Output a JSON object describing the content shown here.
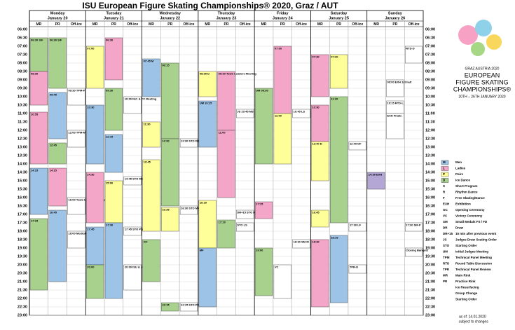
{
  "title": "ISU European Figure Skating Championships® 2020, Graz / AUT",
  "days": [
    {
      "name": "Monday",
      "date": "January 20",
      "columns": [
        "MR",
        "PR",
        "Off-ice"
      ]
    },
    {
      "name": "Tuesday",
      "date": "January 21",
      "columns": [
        "MR",
        "PR",
        "Off-ice"
      ]
    },
    {
      "name": "Wednesday",
      "date": "January 22",
      "columns": [
        "MR",
        "PR",
        "Off-ice"
      ]
    },
    {
      "name": "Thursday",
      "date": "January 23",
      "columns": [
        "MR",
        "PR",
        "Off-ice"
      ]
    },
    {
      "name": "Friday",
      "date": "January 24",
      "columns": [
        "MR",
        "PR",
        "Off-ice"
      ]
    },
    {
      "name": "Saturday",
      "date": "January 25",
      "columns": [
        "MR",
        "PR",
        "Off-ice"
      ]
    },
    {
      "name": "Sunday",
      "date": "January 26",
      "columns": [
        "MR",
        "PR",
        "Off-ice"
      ]
    }
  ],
  "times": [
    "06:00",
    "06:30",
    "07:00",
    "07:30",
    "08:00",
    "08:30",
    "09:00",
    "09:30",
    "10:00",
    "10:30",
    "11:00",
    "11:30",
    "12:00",
    "12:30",
    "13:00",
    "13:30",
    "14:00",
    "14:30",
    "15:00",
    "15:30",
    "16:00",
    "16:30",
    "17:00",
    "17:30",
    "18:00",
    "18:30",
    "19:00",
    "19:30",
    "20:00",
    "20:30",
    "21:00",
    "21:30",
    "22:00",
    "22:30",
    "23:00"
  ],
  "events": [
    {
      "day": 0,
      "col": 0,
      "start": "06:30",
      "end": "08:30",
      "cat": "D",
      "text": "06:30 S/F"
    },
    {
      "day": 0,
      "col": 0,
      "start": "08:30",
      "end": "10:30",
      "cat": "L",
      "text": "08:30"
    },
    {
      "day": 0,
      "col": 0,
      "start": "10:55",
      "end": "14:00",
      "cat": "L",
      "text": "10:55"
    },
    {
      "day": 0,
      "col": 0,
      "start": "14:15",
      "end": "17:00",
      "cat": "M",
      "text": "14:15"
    },
    {
      "day": 0,
      "col": 0,
      "start": "17:15",
      "end": "21:30",
      "cat": "D",
      "text": "17:15"
    },
    {
      "day": 0,
      "col": 1,
      "start": "06:30",
      "end": "09:30",
      "cat": "D",
      "text": "06:30 S/F"
    },
    {
      "day": 0,
      "col": 1,
      "start": "09:45",
      "end": "12:30",
      "cat": "M",
      "text": "09:45"
    },
    {
      "day": 0,
      "col": 1,
      "start": "12:45",
      "end": "14:00",
      "cat": "D",
      "text": "12:45"
    },
    {
      "day": 0,
      "col": 1,
      "start": "14:15",
      "end": "16:30",
      "cat": "L",
      "text": "14:15"
    },
    {
      "day": 0,
      "col": 1,
      "start": "16:45",
      "end": "21:00",
      "cat": "M",
      "text": "16:45"
    },
    {
      "day": 0,
      "col": 2,
      "start": "09:30",
      "end": "10:30",
      "cat": "O",
      "text": "09:30 TPM-P"
    },
    {
      "day": 0,
      "col": 2,
      "start": "12:00",
      "end": "13:00",
      "cat": "O",
      "text": "12:00 TPM-M"
    },
    {
      "day": 0,
      "col": 2,
      "start": "16:00",
      "end": "17:00",
      "cat": "O",
      "text": "16:00 Team Leaders Meeting"
    },
    {
      "day": 0,
      "col": 2,
      "start": "18:00",
      "end": "19:00",
      "cat": "O",
      "text": "18:00 Medical Meeting"
    },
    {
      "day": 1,
      "col": 0,
      "start": "07:00",
      "end": "09:30",
      "cat": "P",
      "text": "07:00"
    },
    {
      "day": 1,
      "col": 0,
      "start": "10:30",
      "end": "14:00",
      "cat": "M",
      "text": "10:30"
    },
    {
      "day": 1,
      "col": 0,
      "start": "14:30",
      "end": "17:30",
      "cat": "L",
      "text": "14:30"
    },
    {
      "day": 1,
      "col": 0,
      "start": "17:45",
      "end": "20:00",
      "cat": "M",
      "text": "17:45"
    },
    {
      "day": 1,
      "col": 0,
      "start": "20:00",
      "end": "22:00",
      "cat": "D",
      "text": "20:00"
    },
    {
      "day": 1,
      "col": 1,
      "start": "06:30",
      "end": "09:00",
      "cat": "L",
      "text": "06:30"
    },
    {
      "day": 1,
      "col": 1,
      "start": "09:30",
      "end": "12:00",
      "cat": "D",
      "text": "09:30"
    },
    {
      "day": 1,
      "col": 1,
      "start": "12:15",
      "end": "14:30",
      "cat": "M",
      "text": "12:15"
    },
    {
      "day": 1,
      "col": 1,
      "start": "15:00",
      "end": "17:30",
      "cat": "P",
      "text": "15:00"
    },
    {
      "day": 1,
      "col": 1,
      "start": "17:30",
      "end": "22:00",
      "cat": "M",
      "text": "17:30"
    },
    {
      "day": 1,
      "col": 2,
      "start": "10:00",
      "end": "11:00",
      "cat": "O",
      "text": "10:00 Ref. & TC Meeting"
    },
    {
      "day": 1,
      "col": 2,
      "start": "14:45",
      "end": "15:15",
      "cat": "O",
      "text": "14:45 STO MS"
    },
    {
      "day": 1,
      "col": 2,
      "start": "17:45",
      "end": "18:15",
      "cat": "O",
      "text": "17:45 STO PS"
    },
    {
      "day": 1,
      "col": 2,
      "start": "20:00",
      "end": "21:30",
      "cat": "O",
      "text": "20:00 ISU & Judges Dinner"
    },
    {
      "day": 2,
      "col": 0,
      "start": "07:45",
      "end": "10:00",
      "cat": "M",
      "text": "07:45 M"
    },
    {
      "day": 2,
      "col": 0,
      "start": "11:30",
      "end": "13:00",
      "cat": "P",
      "text": "11:30"
    },
    {
      "day": 2,
      "col": 0,
      "start": "13:45",
      "end": "18:00",
      "cat": "P",
      "text": "13:45"
    },
    {
      "day": 2,
      "col": 0,
      "start": "18:30",
      "end": "21:00",
      "cat": "D",
      "text": "OC"
    },
    {
      "day": 2,
      "col": 1,
      "start": "08:00",
      "end": "12:30",
      "cat": "D",
      "text": "09:15"
    },
    {
      "day": 2,
      "col": 1,
      "start": "12:30",
      "end": "16:30",
      "cat": "D",
      "text": "12:30"
    },
    {
      "day": 2,
      "col": 1,
      "start": "16:35",
      "end": "18:00",
      "cat": "P",
      "text": "16:35"
    },
    {
      "day": 2,
      "col": 1,
      "start": "22:15",
      "end": "22:45",
      "cat": "D",
      "text": "22:15"
    },
    {
      "day": 2,
      "col": 2,
      "start": "12:30",
      "end": "13:00",
      "cat": "O",
      "text": "12:30 STO DR"
    },
    {
      "day": 2,
      "col": 2,
      "start": "16:30",
      "end": "17:00",
      "cat": "O",
      "text": "16:30 STO MF"
    },
    {
      "day": 2,
      "col": 2,
      "start": "22:15",
      "end": "22:45",
      "cat": "O",
      "text": "22:15 STO PF"
    },
    {
      "day": 3,
      "col": 0,
      "start": "08:30",
      "end": "10:00",
      "cat": "P",
      "text": "08:30 D"
    },
    {
      "day": 3,
      "col": 0,
      "start": "10:15",
      "end": "13:00",
      "cat": "M",
      "text": "UM 10:15"
    },
    {
      "day": 3,
      "col": 0,
      "start": "16:10",
      "end": "19:00",
      "cat": "P",
      "text": "16:10"
    },
    {
      "day": 3,
      "col": 0,
      "start": "19:00",
      "end": "22:30",
      "cat": "M",
      "text": "MF"
    },
    {
      "day": 3,
      "col": 1,
      "start": "08:30",
      "end": "12:00",
      "cat": "L",
      "text": "09:30 Team Leaders Meeting"
    },
    {
      "day": 3,
      "col": 1,
      "start": "12:00",
      "end": "16:00",
      "cat": "L",
      "text": "11:00"
    },
    {
      "day": 3,
      "col": 1,
      "start": "17:20",
      "end": "19:00",
      "cat": "D",
      "text": "17:20"
    },
    {
      "day": 3,
      "col": 2,
      "start": "10:45",
      "end": "11:15",
      "cat": "O",
      "text": "JS 10:45 MS"
    },
    {
      "day": 3,
      "col": 2,
      "start": "16:45",
      "end": "17:15",
      "cat": "O",
      "text": "DR+15 STO DR"
    },
    {
      "day": 3,
      "col": 2,
      "start": "17:30",
      "end": "18:00",
      "cat": "O",
      "text": "STO LS"
    },
    {
      "day": 4,
      "col": 0,
      "start": "09:30",
      "end": "14:00",
      "cat": "D",
      "text": "UM 09:30"
    },
    {
      "day": 4,
      "col": 0,
      "start": "16:15",
      "end": "17:15",
      "cat": "L",
      "text": "17:15"
    },
    {
      "day": 4,
      "col": 0,
      "start": "19:00",
      "end": "21:50",
      "cat": "D",
      "text": "19:00"
    },
    {
      "day": 4,
      "col": 1,
      "start": "07:00",
      "end": "11:00",
      "cat": "L",
      "text": "07:00"
    },
    {
      "day": 4,
      "col": 1,
      "start": "11:00",
      "end": "14:00",
      "cat": "P",
      "text": "11:00"
    },
    {
      "day": 4,
      "col": 1,
      "start": "20:00",
      "end": "22:00",
      "cat": "O",
      "text": "VC"
    },
    {
      "day": 4,
      "col": 2,
      "start": "10:45",
      "end": "11:15",
      "cat": "O",
      "text": "10:45 LS"
    },
    {
      "day": 4,
      "col": 2,
      "start": "18:30",
      "end": "19:00",
      "cat": "O",
      "text": "18:30 SM-M"
    },
    {
      "day": 5,
      "col": 0,
      "start": "07:30",
      "end": "10:00",
      "cat": "L",
      "text": "07:30"
    },
    {
      "day": 5,
      "col": 0,
      "start": "10:30",
      "end": "12:40",
      "cat": "L",
      "text": "10:30"
    },
    {
      "day": 5,
      "col": 0,
      "start": "12:40",
      "end": "15:00",
      "cat": "P",
      "text": "12:40 D"
    },
    {
      "day": 5,
      "col": 0,
      "start": "16:45",
      "end": "17:45",
      "cat": "P",
      "text": "16:45"
    },
    {
      "day": 5,
      "col": 0,
      "start": "18:30",
      "end": "22:30",
      "cat": "L",
      "text": "18:30"
    },
    {
      "day": 5,
      "col": 1,
      "start": "07:30",
      "end": "09:30",
      "cat": "P",
      "text": "07:30"
    },
    {
      "day": 5,
      "col": 1,
      "start": "10:00",
      "end": "17:30",
      "cat": "D",
      "text": "11:20"
    },
    {
      "day": 5,
      "col": 1,
      "start": "18:15",
      "end": "22:15",
      "cat": "M",
      "text": "18:15"
    },
    {
      "day": 5,
      "col": 2,
      "start": "12:40",
      "end": "13:10",
      "cat": "O",
      "text": "12:40 DF"
    },
    {
      "day": 5,
      "col": 2,
      "start": "17:30",
      "end": "18:00",
      "cat": "O",
      "text": "17:30 LF"
    },
    {
      "day": 5,
      "col": 2,
      "start": "20:00",
      "end": "20:30",
      "cat": "O",
      "text": "TPR-D"
    },
    {
      "day": 6,
      "col": 0,
      "start": "14:30",
      "end": "15:30",
      "cat": "X",
      "text": "14:30 EXH"
    },
    {
      "day": 6,
      "col": 1,
      "start": "09:00",
      "end": "10:00",
      "cat": "O",
      "text": "09:00 EXH 1st half"
    },
    {
      "day": 6,
      "col": 1,
      "start": "10:15",
      "end": "11:00",
      "cat": "O",
      "text": "10:15 RTD-L"
    },
    {
      "day": 6,
      "col": 1,
      "start": "11:00",
      "end": "12:30",
      "cat": "O",
      "text": "EXH Finale"
    },
    {
      "day": 6,
      "col": 2,
      "start": "07:00",
      "end": "08:00",
      "cat": "O",
      "text": "RTD-D"
    },
    {
      "day": 6,
      "col": 2,
      "start": "17:30",
      "end": "18:00",
      "cat": "O",
      "text": "17:30 SM-P"
    },
    {
      "day": 6,
      "col": 2,
      "start": "19:00",
      "end": "19:30",
      "cat": "O",
      "text": "Closing Banquet"
    }
  ],
  "categories": {
    "M": "#9dc3e6",
    "L": "#f4a6c8",
    "P": "#ffff99",
    "D": "#a9d18e",
    "X": "#b4a7d6",
    "O": "#ffffff"
  },
  "legend": [
    {
      "key": "M",
      "text": "Men",
      "cat": "M"
    },
    {
      "key": "L",
      "text": "Ladies",
      "cat": "L"
    },
    {
      "key": "P",
      "text": "Pairs",
      "cat": "P"
    },
    {
      "key": "D",
      "text": "Ice Dance",
      "cat": "D"
    },
    {
      "key": "S",
      "text": "Short Program"
    },
    {
      "key": "R",
      "text": "Rhythm Dance"
    },
    {
      "key": "F",
      "text": "Free Skating/Dance"
    },
    {
      "key": "EXH",
      "text": "Exhibition"
    },
    {
      "key": "OC",
      "text": "Opening Ceremony"
    },
    {
      "key": "VC",
      "text": "Victory Ceremony"
    },
    {
      "key": "SM",
      "text": "Small Medals FS / FD"
    },
    {
      "key": "DR",
      "text": "Draw"
    },
    {
      "key": "DR+15",
      "text": "15 min after previous event"
    },
    {
      "key": "JS",
      "text": "Judges Draw Seating Order"
    },
    {
      "key": "STO",
      "text": "Starting Order"
    },
    {
      "key": "UM",
      "text": "Initial Judges Meeting"
    },
    {
      "key": "TPM",
      "text": "Technical Panel Meeting"
    },
    {
      "key": "RTD",
      "text": "Round Table Discussion"
    },
    {
      "key": "TPR",
      "text": "Technical Panel Review"
    },
    {
      "key": "MR",
      "text": "Main Rink"
    },
    {
      "key": "PR",
      "text": "Practice Rink"
    },
    {
      "key": "",
      "text": "Ice Resurfacing"
    },
    {
      "key": "",
      "text": "Group Change"
    },
    {
      "key": "",
      "text": "Starting Order"
    }
  ],
  "logo": {
    "city": "GRAZ AUSTRIA 2020",
    "line1": "EUROPEAN",
    "line2": "FIGURE SKATING",
    "line3": "CHAMPIONSHIPS®",
    "dates": "20TH – 26TH JANUARY 2020"
  },
  "footer": {
    "asof": "as of: 14.01.2020",
    "note": "subject to changes"
  }
}
